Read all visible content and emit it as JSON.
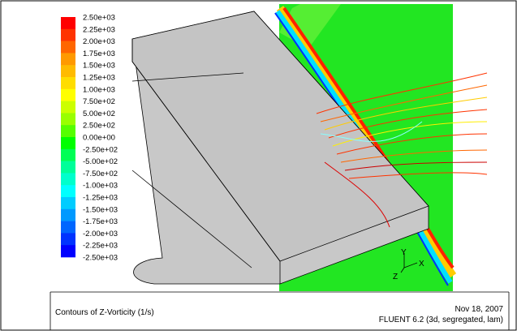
{
  "colorbar": {
    "labels": [
      "2.50e+03",
      "2.25e+03",
      "2.00e+03",
      "1.75e+03",
      "1.50e+03",
      "1.25e+03",
      "1.00e+03",
      "7.50e+02",
      "5.00e+02",
      "2.50e+02",
      "0.00e+00",
      "-2.50e+02",
      "-5.00e+02",
      "-7.50e+02",
      "-1.00e+03",
      "-1.25e+03",
      "-1.50e+03",
      "-1.75e+03",
      "-2.00e+03",
      "-2.25e+03",
      "-2.50e+03"
    ],
    "colors": [
      "#ff0000",
      "#ff3300",
      "#ff6600",
      "#ff9900",
      "#ffbb00",
      "#ffdd00",
      "#ffff00",
      "#ccff00",
      "#99ff00",
      "#55ff00",
      "#00ff00",
      "#00ff55",
      "#00ff99",
      "#00ffcc",
      "#00ffff",
      "#00ccff",
      "#0099ff",
      "#0066ff",
      "#0033ff",
      "#0000ff"
    ]
  },
  "axes": {
    "y": "Y",
    "x": "X",
    "z": "Z"
  },
  "footer": {
    "title": "Contours of Z-Vorticity (1/s)",
    "date": "Nov 18, 2007",
    "software": "FLUENT 6.2 (3d, segregated, lam)"
  }
}
